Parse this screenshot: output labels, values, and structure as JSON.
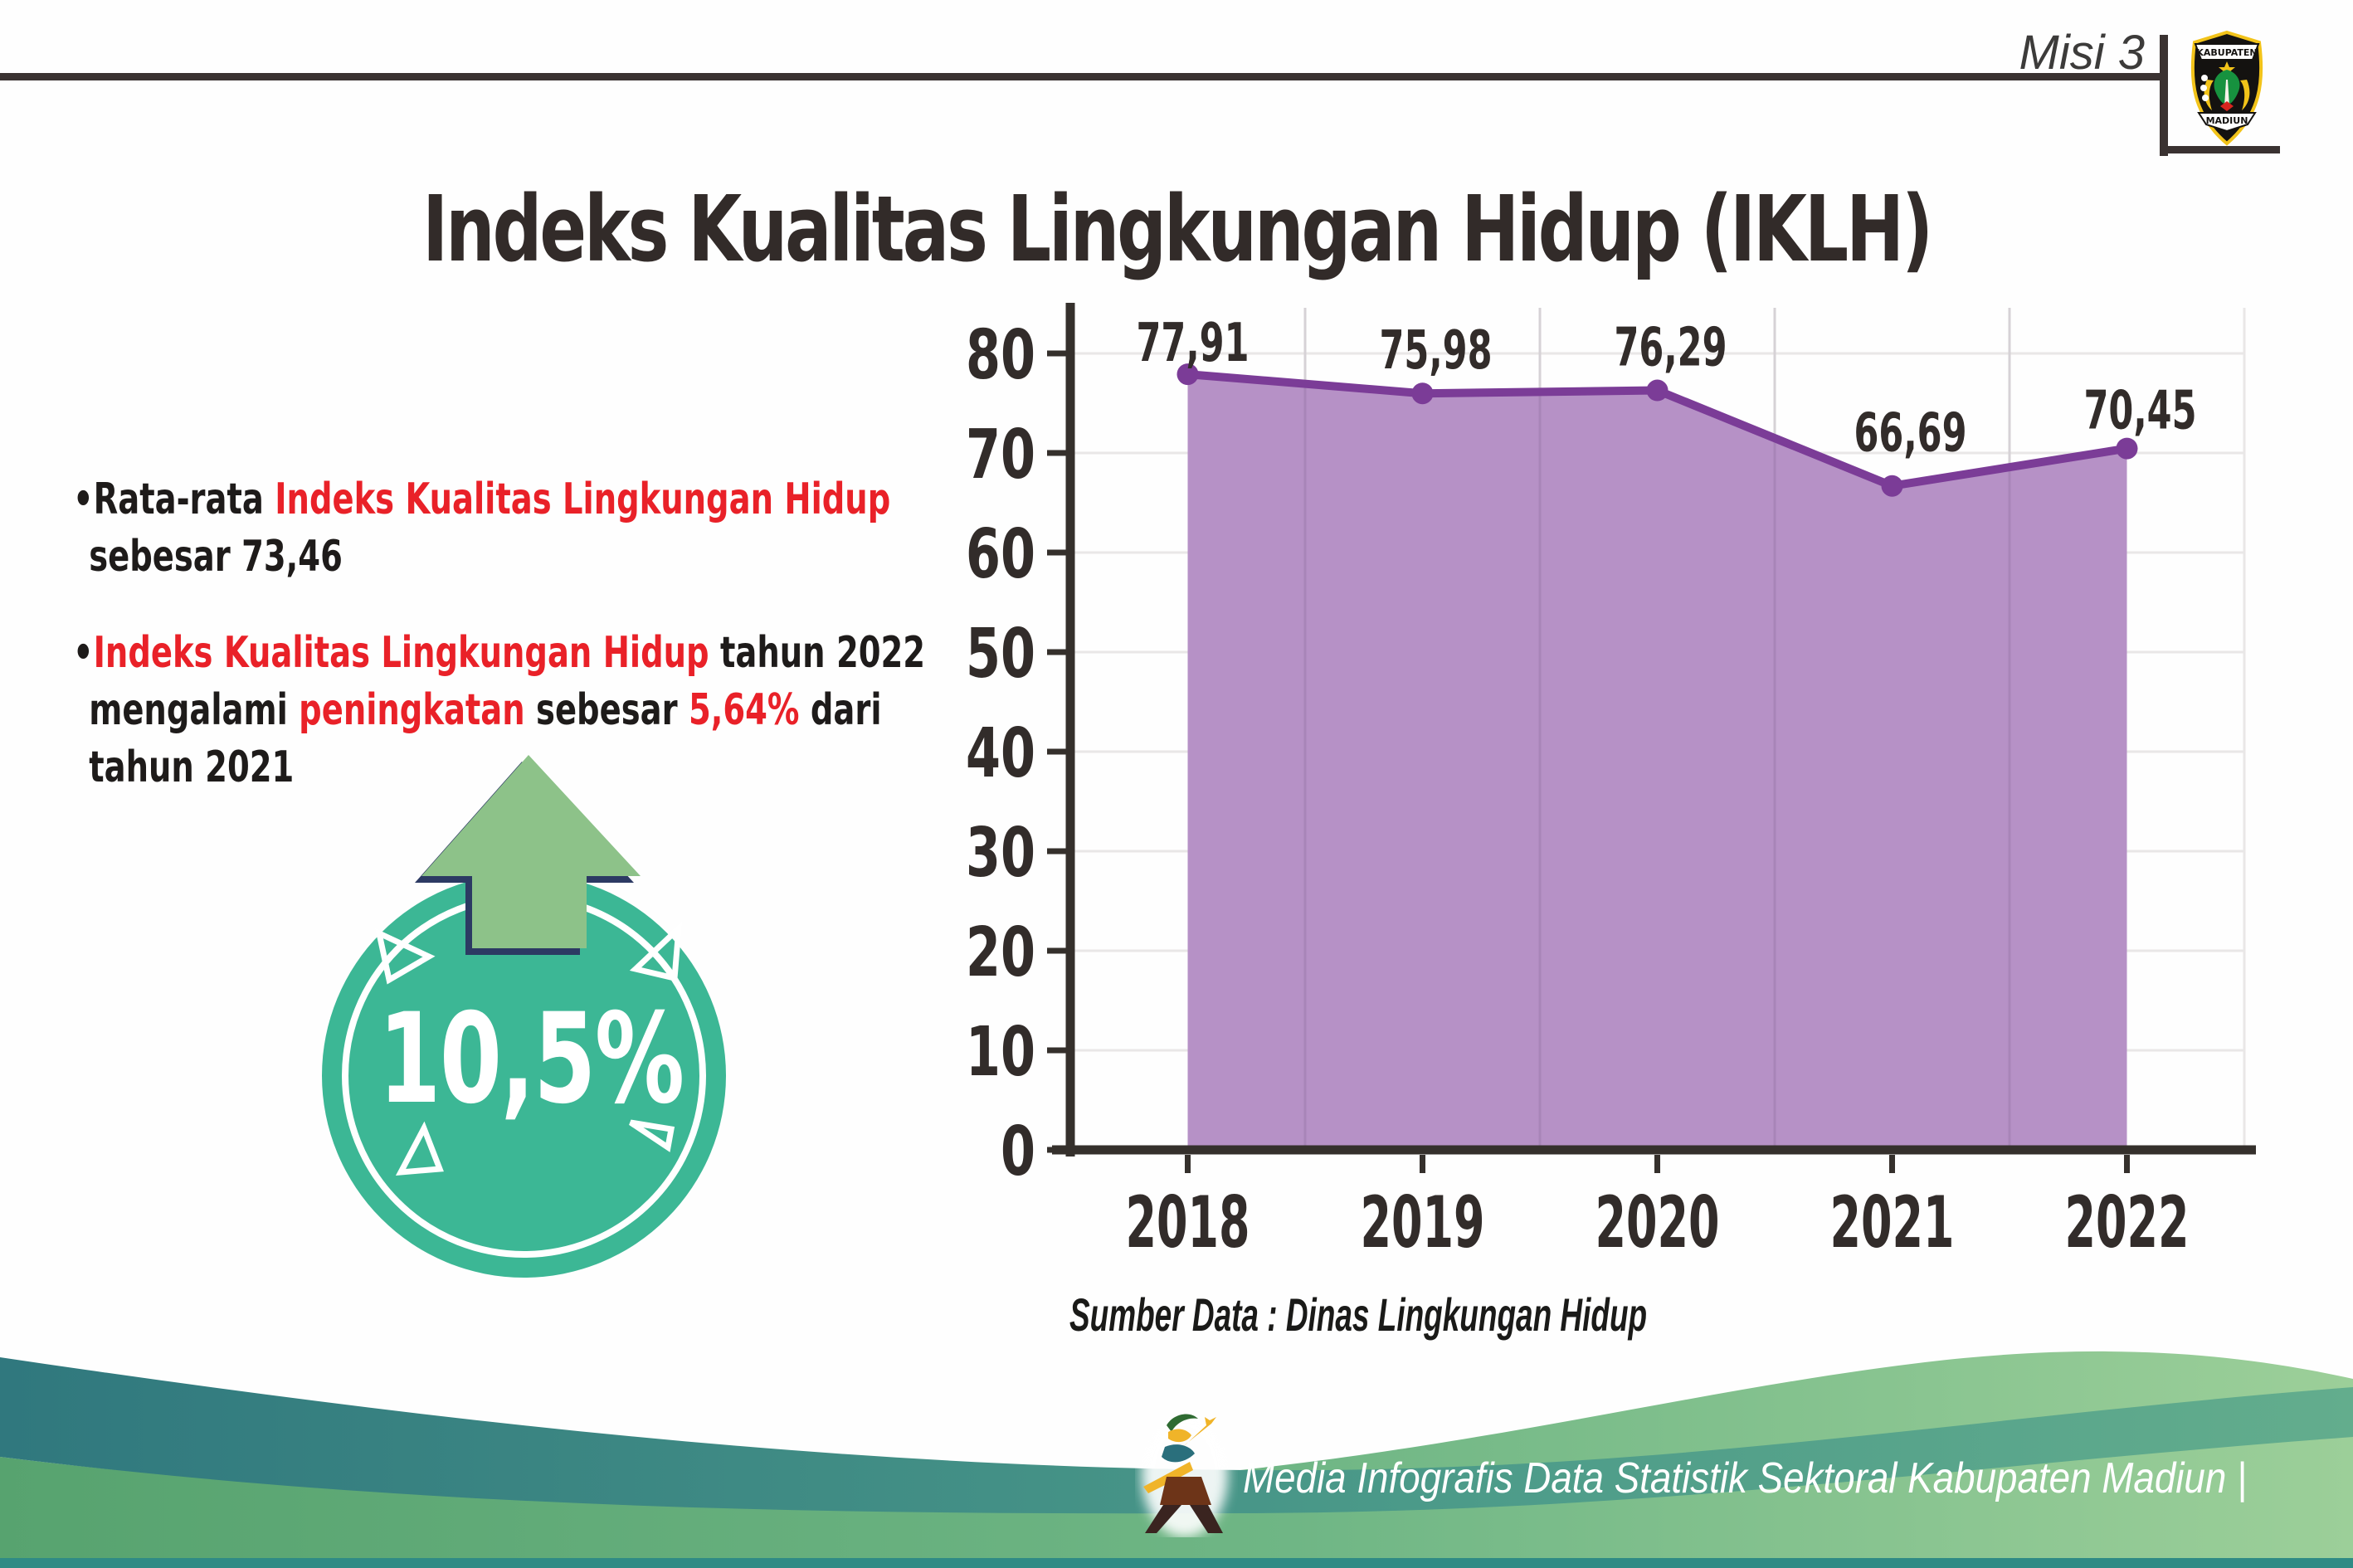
{
  "header": {
    "mission": "Misi 3",
    "logo": {
      "top_banner": "KABUPATEN",
      "bottom_banner": "MADIUN"
    }
  },
  "title": "Indeks Kualitas Lingkungan Hidup (IKLH)",
  "bullets": {
    "dot": "•",
    "b1": {
      "l1s1": "Rata-rata ",
      "l1s2": "Indeks Kualitas Lingkungan Hidup",
      "l2": "sebesar 73,46"
    },
    "b2": {
      "l1s1": "Indeks Kualitas Lingkungan Hidup",
      "l1s2": " tahun 2022",
      "l2s1": "mengalami ",
      "l2s2": "peningkatan",
      "l2s3": " sebesar ",
      "l2s4": "5,64%",
      "l2s5": " dari",
      "l3": "tahun 2021"
    }
  },
  "badge": {
    "value": "10,5%",
    "direction": "up"
  },
  "chart_data": {
    "type": "area",
    "categories": [
      "2018",
      "2019",
      "2020",
      "2021",
      "2022"
    ],
    "series": [
      {
        "name": "IKLH",
        "values": [
          77.91,
          75.98,
          76.29,
          66.69,
          70.45
        ]
      }
    ],
    "value_labels": [
      "77,91",
      "75,98",
      "76,29",
      "66,69",
      "70,45"
    ],
    "title": "",
    "xlabel": "",
    "ylabel": "",
    "ylim": [
      0,
      80
    ],
    "ytick_step": 10,
    "grid": true,
    "legend": "none",
    "source": "Sumber Data : Dinas Lingkungan Hidup",
    "colors": {
      "area_fill": "#b691c6",
      "line": "#7b3c97",
      "axis": "#35302c",
      "grid": "#e9e7e7",
      "label": "#322c2a"
    }
  },
  "accent_colors": {
    "red_text": "#e92128",
    "badge_teal": "#3cb795",
    "arrow_green": "#8dc289",
    "arrow_outline_navy": "#2c3a63",
    "footer_teal": "#30787e",
    "footer_green": "#57a36f"
  },
  "footer": {
    "text": "Media Infografis Data Statistik Sektoral Kabupaten Madiun |"
  }
}
